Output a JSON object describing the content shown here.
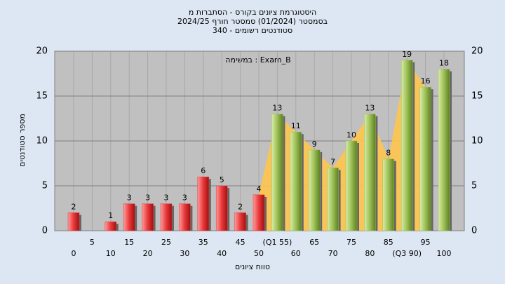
{
  "chart_data": {
    "type": "bar",
    "title": "היסטוגרמת ציונים בקורס - הסתברות מ",
    "subtitle": "בסמסטר (01/2024) סמסטר חורף 2024/25",
    "subtitle2": "סטודנטים רשומים - 340",
    "annotation": "במשימה : Exam_B",
    "x_label": "טווח ציונים",
    "y_label": "מספר סטודנטים",
    "categories": [
      "0",
      "5",
      "10",
      "15",
      "20",
      "25",
      "30",
      "35",
      "40",
      "45",
      "50",
      "(Q1 55)",
      "60",
      "65",
      "70",
      "75",
      "80",
      "85",
      "(Q3 90)",
      "95",
      "100"
    ],
    "values": [
      2,
      0,
      1,
      3,
      3,
      3,
      3,
      6,
      5,
      2,
      4,
      13,
      11,
      9,
      7,
      10,
      13,
      8,
      19,
      16,
      18
    ],
    "bar_colors": [
      "#e8383a",
      "#e8383a",
      "#e8383a",
      "#e8383a",
      "#e8383a",
      "#e8383a",
      "#e8383a",
      "#e8383a",
      "#e8383a",
      "#e8383a",
      "#e8383a",
      "#9cbf55",
      "#9cbf55",
      "#9cbf55",
      "#9cbf55",
      "#9cbf55",
      "#9cbf55",
      "#9cbf55",
      "#9cbf55",
      "#9cbf55",
      "#9cbf55"
    ],
    "quartile_area_color": "#ffc54d",
    "ylim": [
      0,
      20
    ],
    "yticks": [
      0,
      5,
      10,
      15,
      20
    ],
    "grid": true
  }
}
